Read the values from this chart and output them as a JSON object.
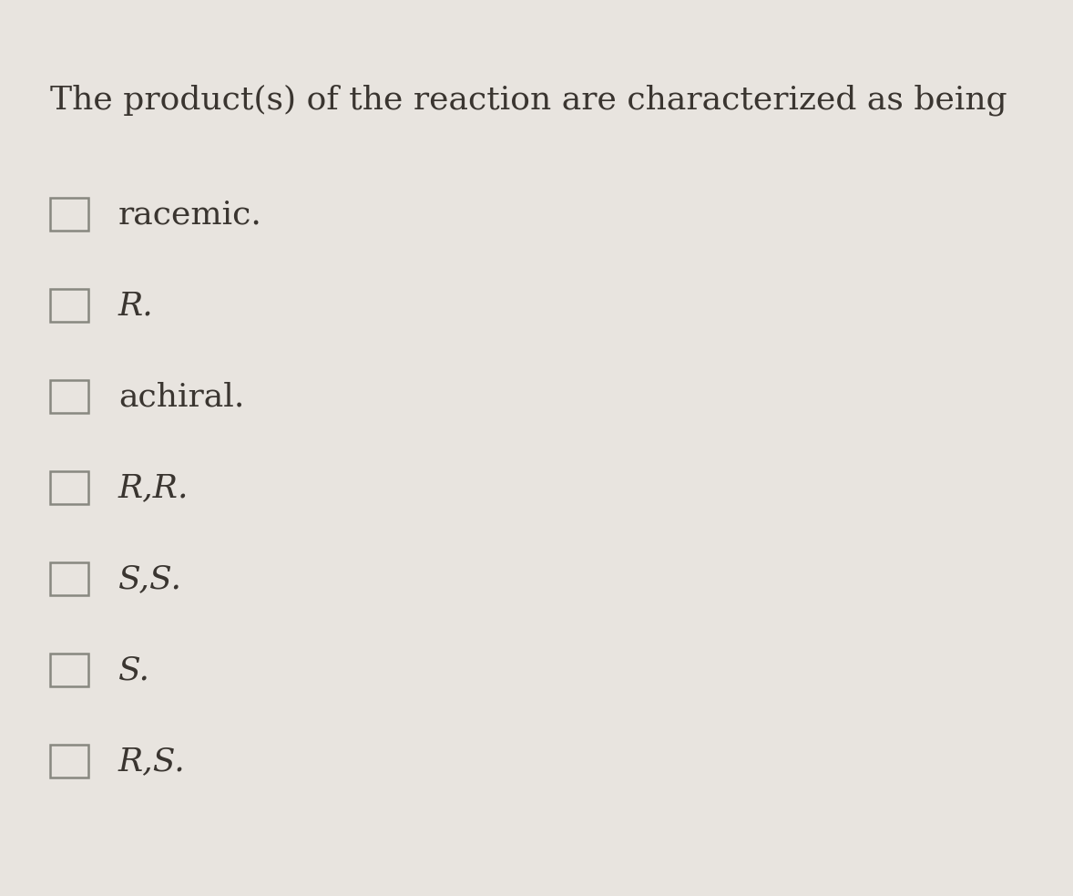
{
  "background_color": "#e8e4df",
  "title": "The product(s) of the reaction are characterized as being",
  "title_fontsize": 26,
  "title_color": "#3a3530",
  "options": [
    {
      "text": "racemic.",
      "italic": false
    },
    {
      "text": "R.",
      "italic": true
    },
    {
      "text": "achiral.",
      "italic": false
    },
    {
      "text": "R,R.",
      "italic": true
    },
    {
      "text": "S,S.",
      "italic": true
    },
    {
      "text": "S.",
      "italic": true
    },
    {
      "text": "R,S.",
      "italic": true
    }
  ],
  "option_fontsize": 26,
  "checkbox_color": "#888880",
  "checkbox_linewidth": 1.8
}
